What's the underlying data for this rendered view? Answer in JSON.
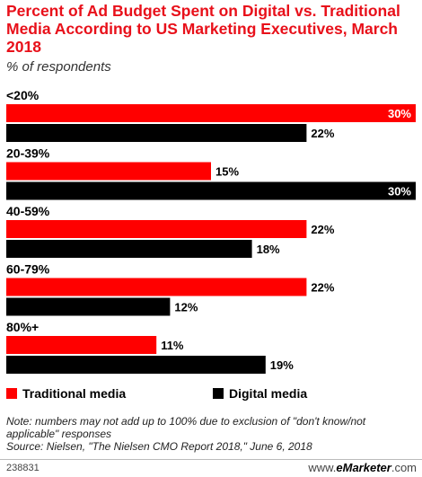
{
  "header": {
    "title": "Percent of Ad Budget Spent on Digital vs. Traditional Media According to US Marketing Executives, March 2018",
    "subtitle": "% of respondents"
  },
  "chart_data": {
    "type": "bar",
    "orientation": "horizontal",
    "title": "Percent of Ad Budget Spent on Digital vs. Traditional Media According to US Marketing Executives, March 2018",
    "subtitle": "% of respondents",
    "categories": [
      "<20%",
      "20-39%",
      "40-59%",
      "60-79%",
      "80%+"
    ],
    "series": [
      {
        "name": "Traditional media",
        "color": "#ff0000",
        "values": [
          30,
          15,
          22,
          22,
          11
        ]
      },
      {
        "name": "Digital media",
        "color": "#000000",
        "values": [
          22,
          30,
          18,
          12,
          19
        ]
      }
    ],
    "value_suffix": "%",
    "xlim": [
      0,
      30
    ],
    "grid": false,
    "legend_position": "bottom"
  },
  "legend": {
    "items": [
      {
        "label": "Traditional media",
        "color": "#ff0000"
      },
      {
        "label": "Digital media",
        "color": "#000000"
      }
    ]
  },
  "footer": {
    "note": "Note: numbers may not add up to 100% due to exclusion of \"don't know/not applicable\" responses",
    "source": "Source: Nielsen, \"The Nielsen CMO Report 2018,\" June 6, 2018",
    "chart_id": "238831",
    "brand_prefix": "www.",
    "brand_name": "eMarketer",
    "brand_suffix": ".com"
  }
}
